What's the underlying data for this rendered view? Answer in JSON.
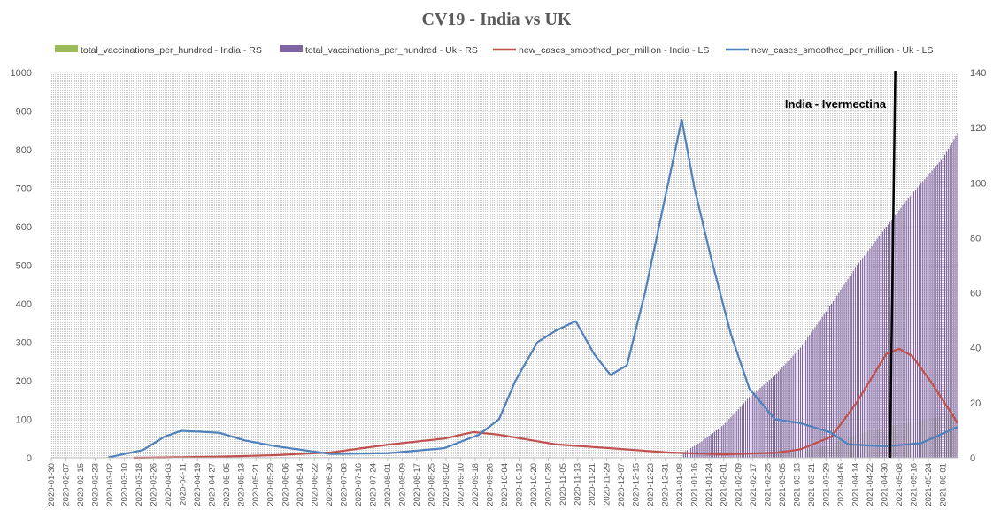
{
  "chart_data": {
    "type": "bar+line",
    "title": "CV19  - India vs UK",
    "annotation": {
      "text": "India - Ivermectina",
      "x": "2021-05-03"
    },
    "legend_position": "top",
    "left_axis": {
      "ylim": [
        0,
        1000
      ],
      "ticks": [
        0,
        100,
        200,
        300,
        400,
        500,
        600,
        700,
        800,
        900,
        1000
      ]
    },
    "right_axis": {
      "ylim": [
        0,
        140
      ],
      "ticks": [
        0,
        20,
        40,
        60,
        80,
        100,
        120,
        140
      ]
    },
    "x_range": [
      "2020-01-30",
      "2021-06-09"
    ],
    "x_tick_labels": [
      "2020-01-30",
      "2020-02-07",
      "2020-02-15",
      "2020-02-23",
      "2020-03-02",
      "2020-03-10",
      "2020-03-18",
      "2020-03-26",
      "2020-04-03",
      "2020-04-11",
      "2020-04-19",
      "2020-04-27",
      "2020-05-05",
      "2020-05-13",
      "2020-05-21",
      "2020-05-29",
      "2020-06-06",
      "2020-06-14",
      "2020-06-22",
      "2020-06-30",
      "2020-07-08",
      "2020-07-16",
      "2020-07-24",
      "2020-08-01",
      "2020-08-09",
      "2020-08-17",
      "2020-08-25",
      "2020-09-02",
      "2020-09-10",
      "2020-09-18",
      "2020-09-26",
      "2020-10-04",
      "2020-10-12",
      "2020-10-20",
      "2020-10-28",
      "2020-11-05",
      "2020-11-13",
      "2020-11-21",
      "2020-11-29",
      "2020-12-07",
      "2020-12-15",
      "2020-12-23",
      "2020-12-31",
      "2021-01-08",
      "2021-01-16",
      "2021-01-24",
      "2021-02-01",
      "2021-02-09",
      "2021-02-17",
      "2021-02-25",
      "2021-03-05",
      "2021-03-13",
      "2021-03-21",
      "2021-03-29",
      "2021-04-06",
      "2021-04-14",
      "2021-04-22",
      "2021-04-30",
      "2021-05-08",
      "2021-05-16",
      "2021-05-24",
      "2021-06-01"
    ],
    "series": [
      {
        "name": "total_vaccinations_per_hundred - India - RS",
        "type": "bar",
        "axis": "right",
        "color": "#9bbb59",
        "points": [
          [
            "2021-01-16",
            0
          ],
          [
            "2021-02-01",
            0.3
          ],
          [
            "2021-02-17",
            0.7
          ],
          [
            "2021-03-01",
            1.2
          ],
          [
            "2021-03-15",
            2.3
          ],
          [
            "2021-03-29",
            4.5
          ],
          [
            "2021-04-10",
            7.3
          ],
          [
            "2021-04-20",
            9.5
          ],
          [
            "2021-05-01",
            11
          ],
          [
            "2021-05-15",
            13
          ],
          [
            "2021-06-01",
            15
          ],
          [
            "2021-06-09",
            17
          ]
        ]
      },
      {
        "name": "total_vaccinations_per_hundred - Uk - RS",
        "type": "bar",
        "axis": "right",
        "color": "#8064a2",
        "points": [
          [
            "2021-01-10",
            2
          ],
          [
            "2021-01-20",
            6
          ],
          [
            "2021-02-01",
            12
          ],
          [
            "2021-02-15",
            22
          ],
          [
            "2021-03-01",
            30
          ],
          [
            "2021-03-15",
            40
          ],
          [
            "2021-04-01",
            56
          ],
          [
            "2021-04-15",
            70
          ],
          [
            "2021-05-01",
            84
          ],
          [
            "2021-05-15",
            96
          ],
          [
            "2021-06-01",
            109
          ],
          [
            "2021-06-09",
            118
          ]
        ]
      },
      {
        "name": "new_cases_smoothed_per_million - India - LS",
        "type": "line",
        "axis": "left",
        "color": "#c0504d",
        "points": [
          [
            "2020-03-15",
            0
          ],
          [
            "2020-04-01",
            1
          ],
          [
            "2020-05-01",
            3
          ],
          [
            "2020-06-01",
            7
          ],
          [
            "2020-07-01",
            14
          ],
          [
            "2020-08-01",
            34
          ],
          [
            "2020-09-01",
            50
          ],
          [
            "2020-09-17",
            67
          ],
          [
            "2020-10-01",
            60
          ],
          [
            "2020-11-01",
            35
          ],
          [
            "2020-12-01",
            25
          ],
          [
            "2021-01-01",
            14
          ],
          [
            "2021-02-01",
            9
          ],
          [
            "2021-03-01",
            13
          ],
          [
            "2021-03-15",
            22
          ],
          [
            "2021-04-01",
            55
          ],
          [
            "2021-04-15",
            145
          ],
          [
            "2021-05-01",
            270
          ],
          [
            "2021-05-08",
            283
          ],
          [
            "2021-05-15",
            265
          ],
          [
            "2021-05-25",
            200
          ],
          [
            "2021-06-05",
            120
          ],
          [
            "2021-06-09",
            90
          ]
        ]
      },
      {
        "name": "new_cases_smoothed_per_million - Uk - LS",
        "type": "line",
        "axis": "left",
        "color": "#4f81bd",
        "points": [
          [
            "2020-03-01",
            1
          ],
          [
            "2020-03-20",
            20
          ],
          [
            "2020-04-01",
            55
          ],
          [
            "2020-04-10",
            70
          ],
          [
            "2020-04-20",
            68
          ],
          [
            "2020-05-01",
            65
          ],
          [
            "2020-05-15",
            45
          ],
          [
            "2020-06-01",
            30
          ],
          [
            "2020-07-01",
            10
          ],
          [
            "2020-08-01",
            12
          ],
          [
            "2020-09-01",
            25
          ],
          [
            "2020-09-20",
            60
          ],
          [
            "2020-10-01",
            100
          ],
          [
            "2020-10-10",
            200
          ],
          [
            "2020-10-22",
            300
          ],
          [
            "2020-11-01",
            330
          ],
          [
            "2020-11-12",
            355
          ],
          [
            "2020-11-22",
            270
          ],
          [
            "2020-12-01",
            215
          ],
          [
            "2020-12-10",
            240
          ],
          [
            "2020-12-20",
            430
          ],
          [
            "2021-01-01",
            700
          ],
          [
            "2021-01-09",
            878
          ],
          [
            "2021-01-16",
            700
          ],
          [
            "2021-01-25",
            520
          ],
          [
            "2021-02-05",
            320
          ],
          [
            "2021-02-15",
            180
          ],
          [
            "2021-03-01",
            100
          ],
          [
            "2021-03-15",
            90
          ],
          [
            "2021-04-01",
            65
          ],
          [
            "2021-04-10",
            35
          ],
          [
            "2021-05-01",
            30
          ],
          [
            "2021-05-20",
            38
          ],
          [
            "2021-06-09",
            80
          ]
        ]
      }
    ]
  }
}
